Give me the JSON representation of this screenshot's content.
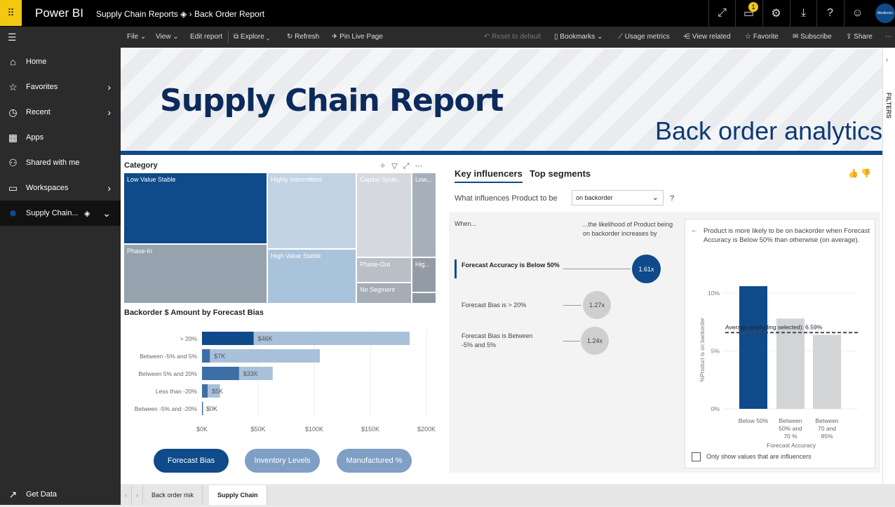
{
  "topbar": {
    "app": "Power BI",
    "workspace": "Supply Chain Reports",
    "report": "Back Order Report",
    "notifications": "1",
    "avatar": "Medtronic",
    "icons": [
      "expand-icon",
      "notification-icon",
      "gear-icon",
      "download-icon",
      "help-icon",
      "smiley-icon"
    ]
  },
  "toolbar": {
    "file": "File",
    "view": "View",
    "edit": "Edit report",
    "explore": "Explore",
    "refresh": "Refresh",
    "pin": "Pin Live Page",
    "reset": "Reset to default",
    "bookmarks": "Bookmarks",
    "usage": "Usage metrics",
    "related": "View related",
    "favorite": "Favorite",
    "subscribe": "Subscribe",
    "share": "Share"
  },
  "sidebar": {
    "items": [
      {
        "label": "Home",
        "icon": "⌂"
      },
      {
        "label": "Favorites",
        "icon": "☆"
      },
      {
        "label": "Recent",
        "icon": "◷"
      },
      {
        "label": "Apps",
        "icon": "▦"
      },
      {
        "label": "Shared with me",
        "icon": "⚇"
      },
      {
        "label": "Workspaces",
        "icon": "▭"
      },
      {
        "label": "Supply Chain...",
        "icon": "●"
      }
    ],
    "get_data": "Get Data"
  },
  "report": {
    "title": "Supply Chain Report",
    "subtitle": "Back order analytics"
  },
  "treemap": {
    "title": "Category",
    "cells": [
      "Low Value Stable",
      "Phase-In",
      "Highly Intermittent",
      "High Value Stable",
      "Capital Syste...",
      "Phase-Out",
      "No Segment",
      "Low...",
      "Hig...",
      ""
    ],
    "colors": [
      "#0f4a8a",
      "#96a3ae",
      "#c1d3e3",
      "#a9c3da",
      "#d5d9de",
      "#b9bfc6",
      "#a5adb6",
      "#a7b0ba",
      "#939ca6",
      "#8f98a2"
    ]
  },
  "chart_data": [
    {
      "type": "bar",
      "title": "Backorder $ Amount by Forecast Bias",
      "categories": [
        "> 20%",
        "Between -5% and 5%",
        "Between 5% and 20%",
        "Less than -20%",
        "Between -5% and -20%"
      ],
      "series": [
        {
          "values": [
            46,
            7,
            33,
            5,
            0
          ]
        },
        {
          "values": [
            185,
            105,
            63,
            16,
            1
          ]
        }
      ],
      "data_labels": [
        "$46K",
        "$7K",
        "$33K",
        "$5K",
        "$0K"
      ],
      "xticks": [
        "$0K",
        "$50K",
        "$100K",
        "$150K",
        "$200K"
      ],
      "xlim": [
        0,
        200
      ],
      "unit": "$K",
      "grid": true,
      "colors": [
        "#0f4a8a",
        "#a9c0da"
      ]
    },
    {
      "type": "bar",
      "categories": [
        "Below 50%",
        "Between 50% and 70 %",
        "Between 70 and 85%"
      ],
      "values": [
        10.6,
        7.8,
        6.4
      ],
      "xlabel": "Forecast Accuracy",
      "ylabel": "%Product is on backorder",
      "yticks": [
        "0%",
        "5%",
        "10%"
      ],
      "ylim": [
        0,
        10
      ],
      "average_label": "Average (excluding selected): 6.59%",
      "average": 6.59,
      "colors": [
        "#0f4a8a",
        "#d3d4d6"
      ]
    }
  ],
  "buttons": [
    "Forecast Bias",
    "Inventory Levels",
    "Manufactured %"
  ],
  "key_influencers": {
    "tabs": [
      "Key influencers",
      "Top segments"
    ],
    "question": "What influences Product to be",
    "dropdown": "on backorder",
    "help": "?",
    "when": "When...",
    "likelihood": "...the likelihood of Product being on backorder increases by",
    "items": [
      {
        "label": "Forecast Accuracy is Below 50%",
        "value": "1.61x"
      },
      {
        "label": "Forecast Bias is > 20%",
        "value": "1.27x"
      },
      {
        "label": "Forecast Bias is Between -5% and 5%",
        "value": "1.24x"
      }
    ],
    "detail_text": "Product is more likely to be on backorder when Forecast Accuracy is Below 50% than otherwise (on average).",
    "checkbox": "Only show values that are influencers"
  },
  "filters": "FILTERS",
  "page_tabs": [
    "Back order risk",
    "Supply Chain"
  ]
}
